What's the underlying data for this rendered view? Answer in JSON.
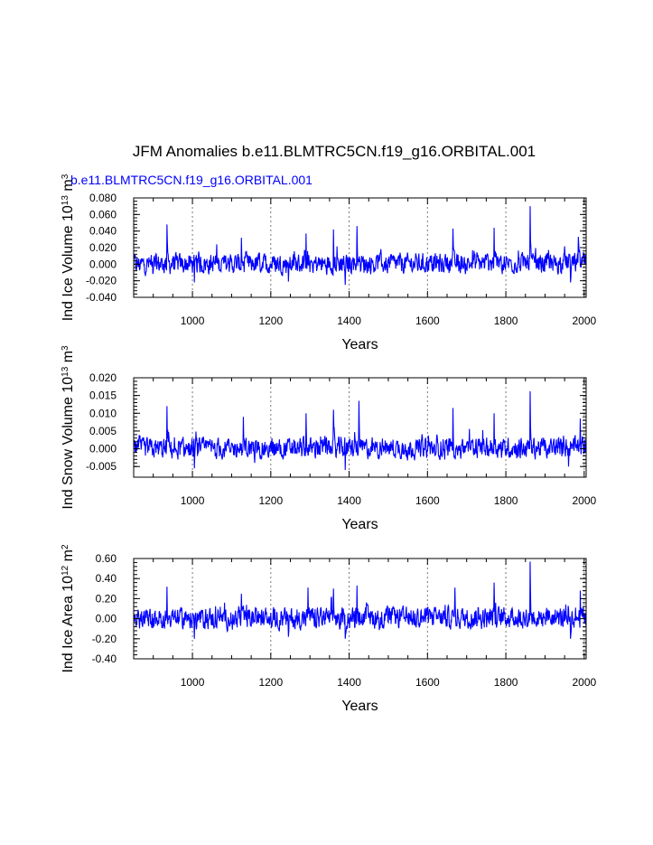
{
  "chart_data": {
    "type": "line",
    "title": "JFM Anomalies b.e11.BLMTRC5CN.f19_g16.ORBITAL.001",
    "series_name": "b.e11.BLMTRC5CN.f19_g16.ORBITAL.001",
    "line_color": "#0000ff",
    "grid": "vertical dotted at 1000, 1200, 1400, 1600, 1800, 2000",
    "panels": [
      {
        "id": "ice-volume",
        "ylabel": "Ind Ice Volume",
        "yunit_base": "10",
        "yunit_exp": "13",
        "yunit_m": "m",
        "yunit_mexp": "3",
        "xlabel": "Years",
        "xlim": [
          850,
          2005
        ],
        "ylim": [
          -0.04,
          0.08
        ],
        "yticks": [
          -0.04,
          -0.02,
          0.0,
          0.02,
          0.04,
          0.06,
          0.08
        ],
        "ytick_labels": [
          "-0.040",
          "-0.020",
          "0.000",
          "0.020",
          "0.040",
          "0.060",
          "0.080"
        ],
        "xticks": [
          1000,
          1200,
          1400,
          1600,
          1800,
          2000
        ],
        "xtick_labels": [
          "1000",
          "1200",
          "1400",
          "1600",
          "1800",
          "2000"
        ],
        "noise_amp": 0.0075,
        "spikes": [
          [
            935,
            0.048
          ],
          [
            1125,
            0.032
          ],
          [
            1290,
            0.037
          ],
          [
            1360,
            0.042
          ],
          [
            1420,
            0.046
          ],
          [
            1665,
            0.043
          ],
          [
            1770,
            0.044
          ],
          [
            1862,
            0.07
          ],
          [
            1985,
            0.033
          ],
          [
            1005,
            -0.022
          ],
          [
            1245,
            -0.021
          ],
          [
            1390,
            -0.025
          ],
          [
            1965,
            -0.022
          ]
        ]
      },
      {
        "id": "snow-volume",
        "ylabel": "Ind Snow Volume",
        "yunit_base": "10",
        "yunit_exp": "13",
        "yunit_m": "m",
        "yunit_mexp": "3",
        "xlabel": "Years",
        "xlim": [
          850,
          2005
        ],
        "ylim": [
          -0.008,
          0.02
        ],
        "yticks": [
          -0.005,
          0.0,
          0.005,
          0.01,
          0.015,
          0.02
        ],
        "ytick_labels": [
          "-0.005",
          "0.000",
          "0.005",
          "0.010",
          "0.015",
          "0.020"
        ],
        "xticks": [
          1000,
          1200,
          1400,
          1600,
          1800,
          2000
        ],
        "xtick_labels": [
          "1000",
          "1200",
          "1400",
          "1600",
          "1800",
          "2000"
        ],
        "noise_amp": 0.0018,
        "spikes": [
          [
            935,
            0.012
          ],
          [
            1130,
            0.009
          ],
          [
            1290,
            0.01
          ],
          [
            1360,
            0.011
          ],
          [
            1425,
            0.0135
          ],
          [
            1665,
            0.0115
          ],
          [
            1770,
            0.01
          ],
          [
            1862,
            0.0162
          ],
          [
            1990,
            0.0085
          ],
          [
            1005,
            -0.0055
          ],
          [
            1390,
            -0.006
          ],
          [
            1960,
            -0.005
          ]
        ]
      },
      {
        "id": "ice-area",
        "ylabel": "Ind Ice Area",
        "yunit_base": "10",
        "yunit_exp": "12",
        "yunit_m": "m",
        "yunit_mexp": "2",
        "xlabel": "Years",
        "xlim": [
          850,
          2005
        ],
        "ylim": [
          -0.4,
          0.6
        ],
        "yticks": [
          -0.4,
          -0.2,
          0.0,
          0.2,
          0.4,
          0.6
        ],
        "ytick_labels": [
          "-0.40",
          "-0.20",
          "0.00",
          "0.20",
          "0.40",
          "0.60"
        ],
        "xticks": [
          1000,
          1200,
          1400,
          1600,
          1800,
          2000
        ],
        "xtick_labels": [
          "1000",
          "1200",
          "1400",
          "1600",
          "1800",
          "2000"
        ],
        "noise_amp": 0.065,
        "spikes": [
          [
            935,
            0.32
          ],
          [
            1125,
            0.25
          ],
          [
            1295,
            0.31
          ],
          [
            1360,
            0.3
          ],
          [
            1420,
            0.33
          ],
          [
            1670,
            0.31
          ],
          [
            1770,
            0.36
          ],
          [
            1862,
            0.57
          ],
          [
            1990,
            0.28
          ],
          [
            1005,
            -0.2
          ],
          [
            1245,
            -0.18
          ],
          [
            1390,
            -0.2
          ],
          [
            1965,
            -0.2
          ]
        ]
      }
    ]
  }
}
